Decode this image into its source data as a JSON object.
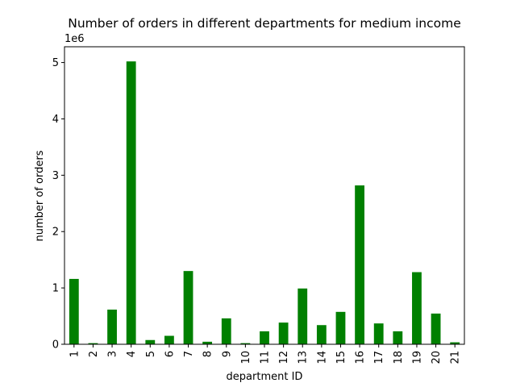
{
  "chart_data": {
    "type": "bar",
    "title": "Number of orders in different departments for medium income",
    "xlabel": "department ID",
    "ylabel": "number of orders",
    "y_offset_label": "1e6",
    "y_scale": 1000000,
    "ylim": [
      0,
      5280000
    ],
    "y_ticks": [
      0,
      1,
      2,
      3,
      4,
      5
    ],
    "grid": false,
    "legend": "none",
    "bar_color": "#008000",
    "categories": [
      "1",
      "2",
      "3",
      "4",
      "5",
      "6",
      "7",
      "8",
      "9",
      "10",
      "11",
      "12",
      "13",
      "14",
      "15",
      "16",
      "17",
      "18",
      "19",
      "20",
      "21"
    ],
    "values": [
      1160000,
      20000,
      615000,
      5020000,
      75000,
      150000,
      1300000,
      45000,
      460000,
      20000,
      230000,
      385000,
      990000,
      340000,
      575000,
      2820000,
      370000,
      230000,
      1280000,
      545000,
      35000
    ]
  }
}
